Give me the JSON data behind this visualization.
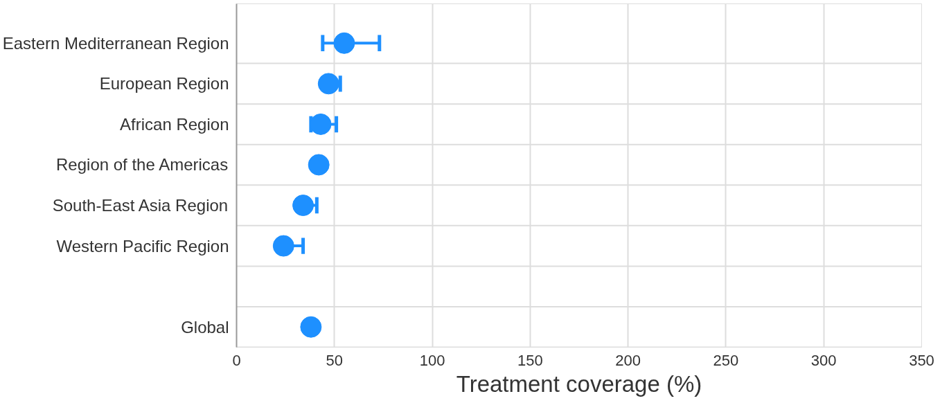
{
  "chart_data": {
    "type": "scatter",
    "orientation": "horizontal",
    "categories": [
      "Eastern Mediterranean Region",
      "European Region",
      "African Region",
      "Region of the Americas",
      "South-East Asia Region",
      "Western Pacific Region",
      null,
      "Global"
    ],
    "values": [
      55,
      47,
      43,
      42,
      34,
      24,
      null,
      38
    ],
    "errors": [
      [
        44,
        73
      ],
      [
        47,
        53
      ],
      [
        38,
        51
      ],
      null,
      [
        34,
        41
      ],
      [
        24,
        34
      ],
      null,
      null
    ],
    "color": "#1e90ff",
    "marker": "circle",
    "xlabel": "Treatment coverage (%)",
    "xlim": [
      0,
      350
    ],
    "xticks": [
      0,
      50,
      100,
      150,
      200,
      250,
      300,
      350
    ],
    "grid": true
  }
}
